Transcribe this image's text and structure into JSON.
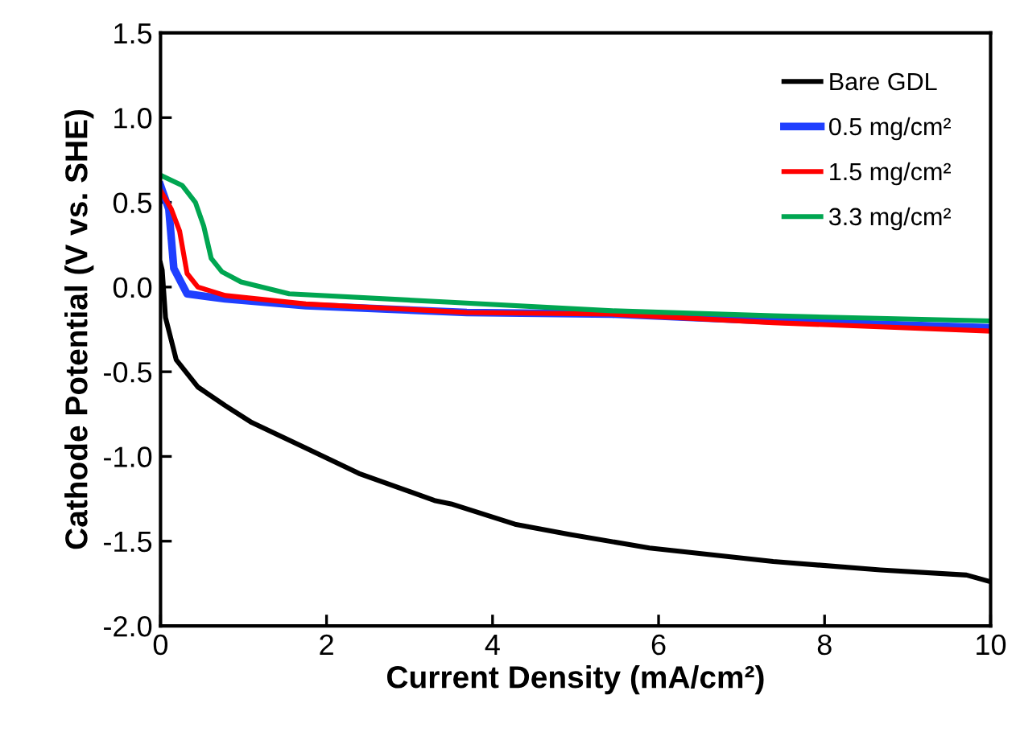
{
  "chart_data": {
    "type": "line",
    "xlabel": "Current Density (mA/cm²)",
    "ylabel": "Cathode Potential (V vs. SHE)",
    "xlim": [
      0,
      10
    ],
    "xticks": [
      0,
      2,
      4,
      6,
      8,
      10
    ],
    "ylim": [
      -2.0,
      1.5
    ],
    "yticks": [
      {
        "value": -2.0,
        "label": "-2.0"
      },
      {
        "value": -1.5,
        "label": "-1.5"
      },
      {
        "value": -1.0,
        "label": "-1.0"
      },
      {
        "value": -0.5,
        "label": "-0.5"
      },
      {
        "value": 0.0,
        "label": "0.0"
      },
      {
        "value": 0.5,
        "label": "0.5"
      },
      {
        "value": 1.0,
        "label": "1.0"
      },
      {
        "value": 1.5,
        "label": "1.5"
      }
    ],
    "grid": false,
    "legend": "top right",
    "marker": "none",
    "line_style": "solid",
    "series": [
      {
        "name": "Bare GDL",
        "color": "#000000",
        "x": [
          0,
          0.02,
          0.06,
          0.19,
          0.45,
          0.78,
          1.1,
          1.75,
          2.39,
          3.3,
          3.5,
          4.27,
          4.92,
          5.89,
          7.38,
          8.67,
          9.71,
          10
        ],
        "values": [
          0.14,
          0.1,
          -0.18,
          -0.43,
          -0.59,
          -0.7,
          -0.8,
          -0.95,
          -1.1,
          -1.26,
          -1.28,
          -1.4,
          -1.46,
          -1.54,
          -1.62,
          -1.67,
          -1.7,
          -1.74
        ]
      },
      {
        "name": "0.5 mg/cm²",
        "color": "#1f3fff",
        "x": [
          0,
          0.1,
          0.16,
          0.32,
          0.78,
          1.75,
          3.69,
          5.44,
          7.38,
          10
        ],
        "values": [
          0.6,
          0.46,
          0.11,
          -0.04,
          -0.07,
          -0.11,
          -0.15,
          -0.16,
          -0.2,
          -0.24
        ]
      },
      {
        "name": "1.5 mg/cm²",
        "color": "#ff0000",
        "x": [
          0,
          0.13,
          0.23,
          0.32,
          0.45,
          0.78,
          1.75,
          3.69,
          5.44,
          7.38,
          10
        ],
        "values": [
          0.57,
          0.46,
          0.33,
          0.08,
          0.0,
          -0.05,
          -0.1,
          -0.15,
          -0.16,
          -0.21,
          -0.26
        ]
      },
      {
        "name": "3.3 mg/cm²",
        "color": "#00a651",
        "x": [
          0,
          0.26,
          0.42,
          0.52,
          0.61,
          0.74,
          0.97,
          1.55,
          3.5,
          5.44,
          7.38,
          10
        ],
        "values": [
          0.66,
          0.6,
          0.5,
          0.36,
          0.17,
          0.09,
          0.03,
          -0.04,
          -0.09,
          -0.14,
          -0.17,
          -0.2
        ]
      }
    ]
  }
}
